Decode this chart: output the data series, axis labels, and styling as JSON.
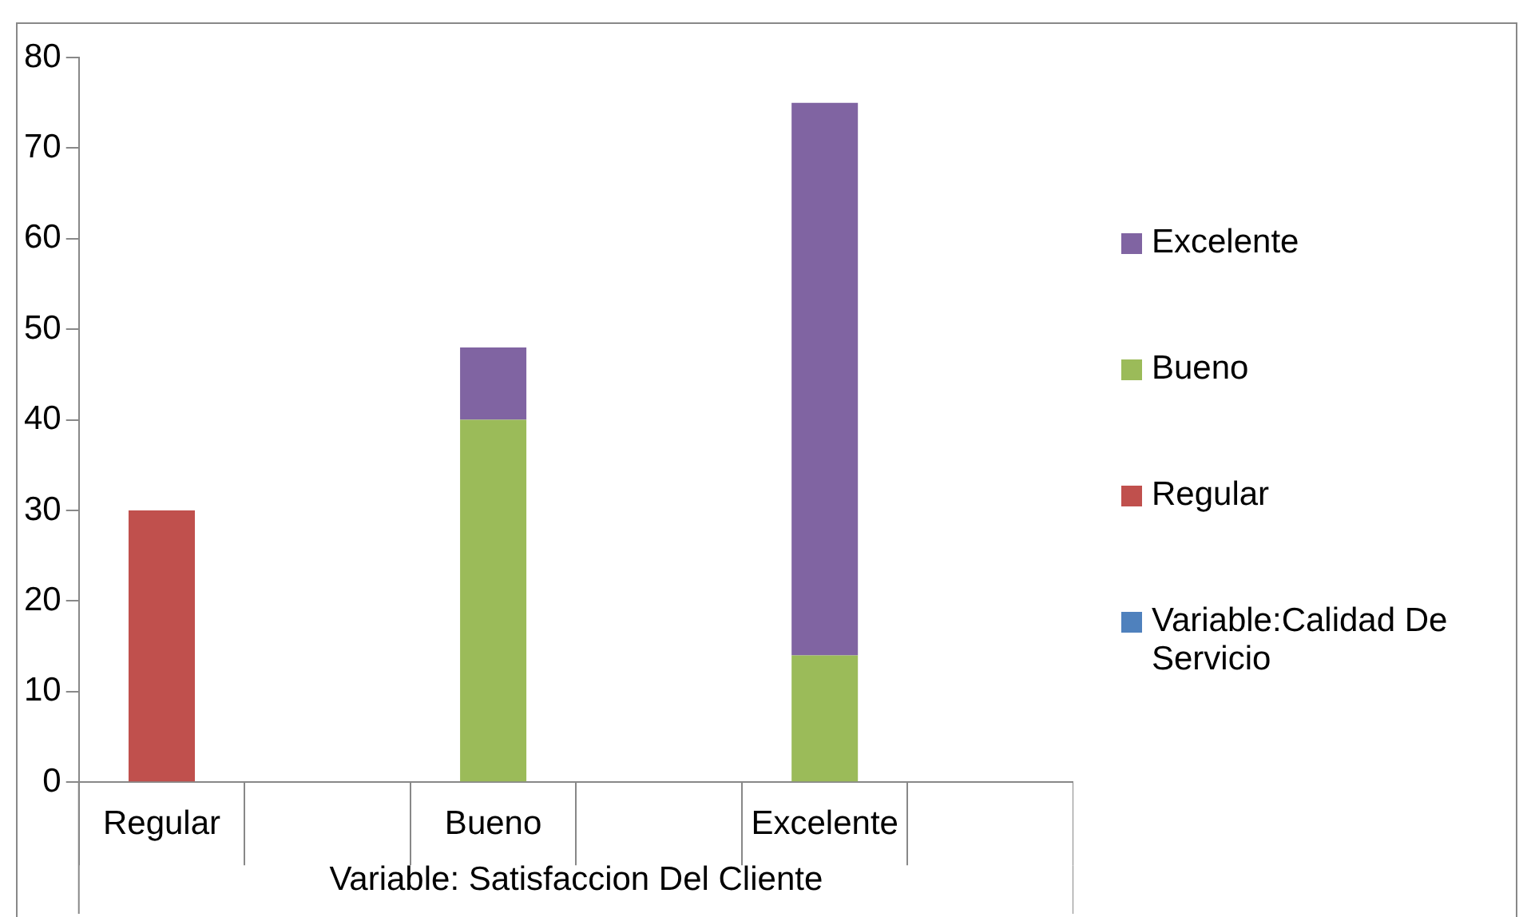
{
  "chart_data": {
    "type": "bar",
    "stacked": true,
    "xlabel": "Variable: Satisfaccion Del Cliente",
    "categories": [
      "Regular",
      null,
      "Bueno",
      null,
      "Excelente",
      null
    ],
    "series": [
      {
        "name": "Variable:Calidad De Servicio",
        "color": "#4f81bd",
        "values": [
          0,
          0,
          0,
          0,
          0,
          0
        ]
      },
      {
        "name": "Regular",
        "color": "#c0504d",
        "values": [
          30,
          0,
          0,
          0,
          0,
          0
        ]
      },
      {
        "name": "Bueno",
        "color": "#9bbb59",
        "values": [
          0,
          0,
          40,
          0,
          14,
          0
        ]
      },
      {
        "name": "Excelente",
        "color": "#8064a2",
        "values": [
          0,
          0,
          8,
          0,
          61,
          0
        ]
      }
    ],
    "ylim": [
      0,
      80
    ],
    "yticks": [
      0,
      10,
      20,
      30,
      40,
      50,
      60,
      70,
      80
    ],
    "grid": false,
    "legend": "right"
  }
}
